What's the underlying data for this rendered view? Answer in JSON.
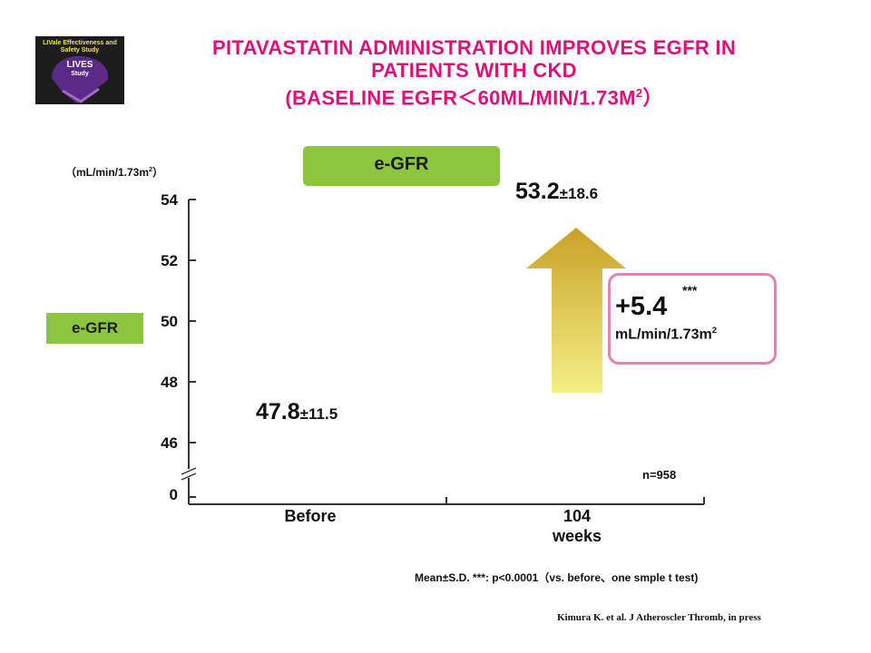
{
  "logo": {
    "line1": "LIVale Effectiveness and Safety Study",
    "line2": "LIVES",
    "line3": "Study"
  },
  "title": {
    "line1": "PITAVASTATIN ADMINISTRATION IMPROVES EGFR IN",
    "line2": "PATIENTS WITH CKD",
    "line3": "(BASELINE EGFR＜60ML/MIN/1.73M",
    "line3_sup": "2",
    "line3_end": "）"
  },
  "chart_data": {
    "type": "bar",
    "legend_label_top": "e-GFR",
    "ylabel_badge": "e-GFR",
    "unit_label": "（mL/min/1.73m",
    "unit_sup": "2",
    "unit_end": "）",
    "y_ticks": [
      "54",
      "52",
      "50",
      "48",
      "46",
      "0"
    ],
    "y_axis_break": true,
    "ylim": [
      44,
      54
    ],
    "categories": [
      "Before",
      "104 weeks"
    ],
    "category_labels": {
      "before": "Before",
      "after_line1": "104",
      "after_line2": "weeks"
    },
    "values": [
      47.8,
      53.2
    ],
    "sd": [
      11.5,
      18.6
    ],
    "value_labels": [
      {
        "mean": "47.8",
        "sd": "±11.5"
      },
      {
        "mean": "53.2",
        "sd": "±18.6"
      }
    ],
    "n_label": "n=958",
    "change": {
      "value": "+5.4",
      "significance": "***",
      "unit": "mL/min/1.73m",
      "unit_sup": "2"
    },
    "arrow_colors": {
      "top": "#c9a227",
      "bottom": "#f5ef85"
    },
    "callout_border": "#e87eb8",
    "badge_color": "#8cc63f"
  },
  "footnote": "Mean±S.D.   ***: p<0.0001（vs. before、one smple t test)",
  "citation": "Kimura  K.  et al.  J Atheroscler  Thromb,  in press"
}
